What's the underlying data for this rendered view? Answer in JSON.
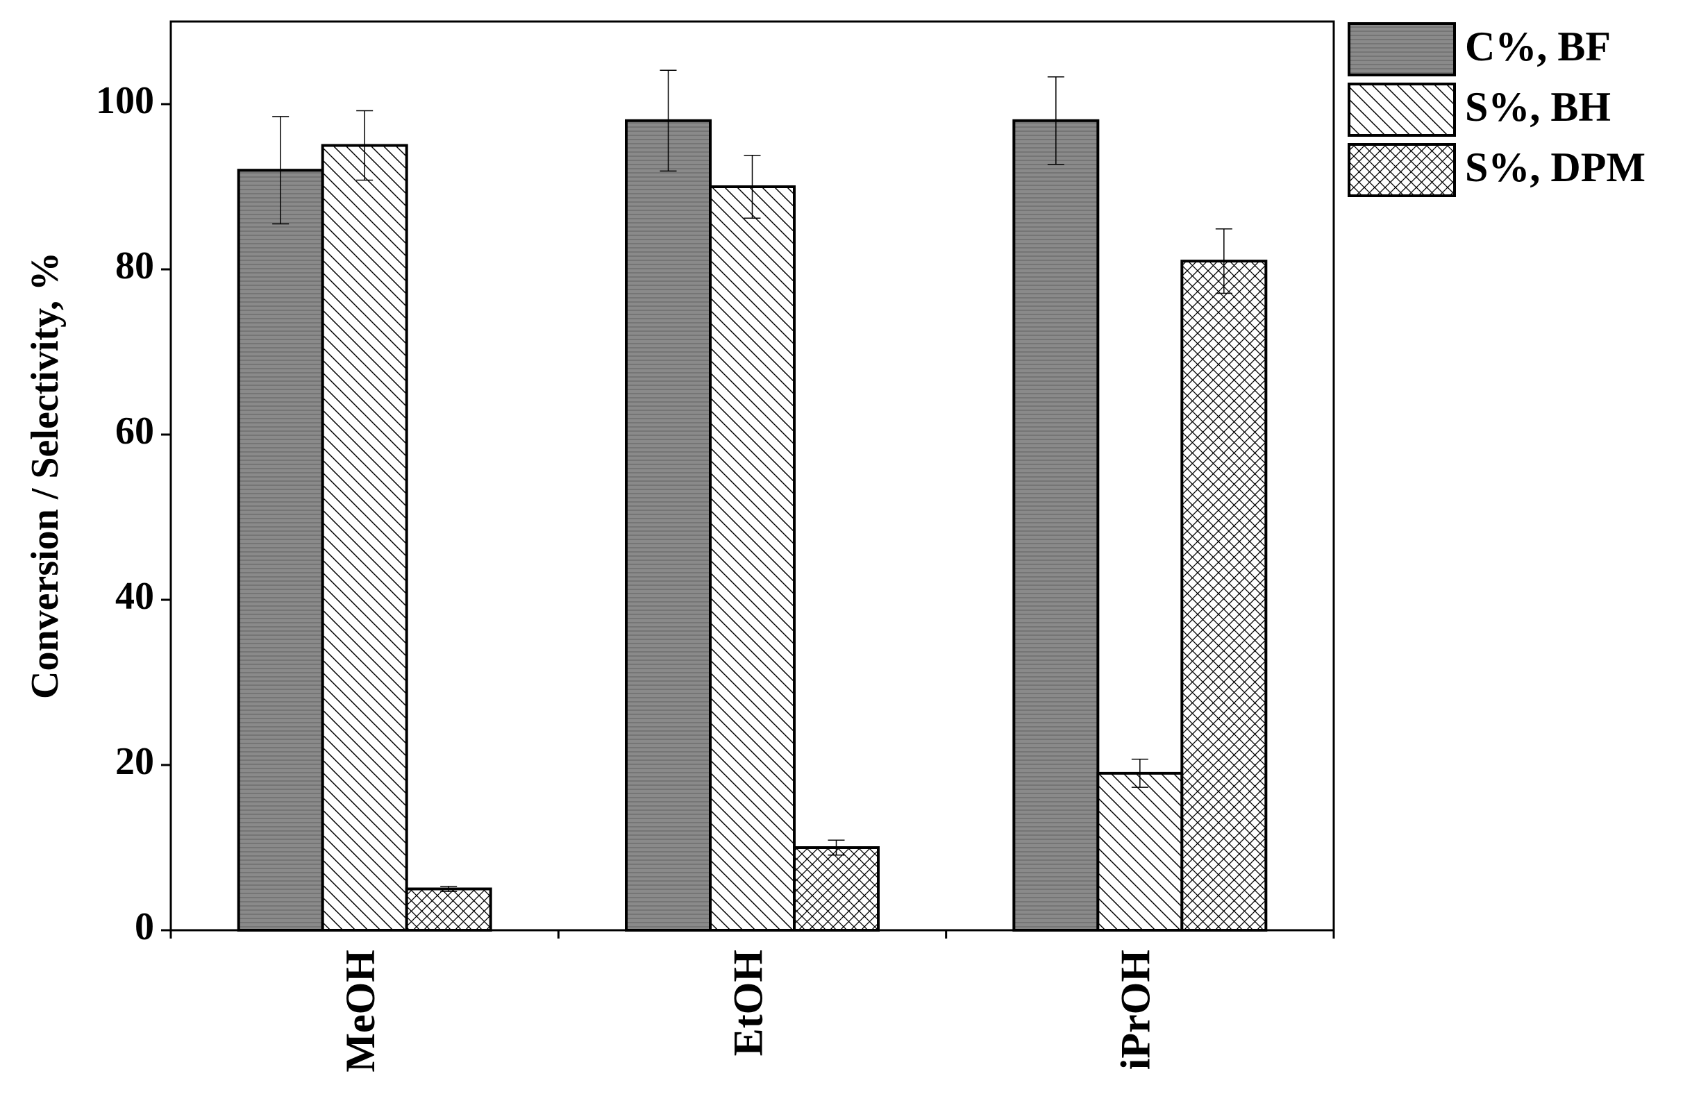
{
  "chart_data": {
    "type": "bar",
    "y_label": "Conversion / Selectivity, %",
    "categories": [
      "MeOH",
      "EtOH",
      "iPrOH"
    ],
    "series": [
      {
        "name": "C%, BF",
        "color": "#808080",
        "hatch": "horizontal",
        "values": [
          92,
          98,
          98
        ],
        "errors": [
          6.5,
          6.1,
          5.3
        ]
      },
      {
        "name": "S%, BH",
        "color": "#ffffff",
        "hatch": "diagonal",
        "values": [
          95,
          90,
          19
        ],
        "errors": [
          4.2,
          3.8,
          1.7
        ]
      },
      {
        "name": "S%, DPM",
        "color": "#ffffff",
        "hatch": "cross",
        "values": [
          5,
          10,
          81
        ],
        "errors": [
          0.3,
          0.9,
          3.9
        ]
      }
    ],
    "ylim": [
      0,
      110
    ],
    "yticks": [
      0,
      20,
      40,
      60,
      80,
      100
    ],
    "legend": "outside-top-right"
  }
}
